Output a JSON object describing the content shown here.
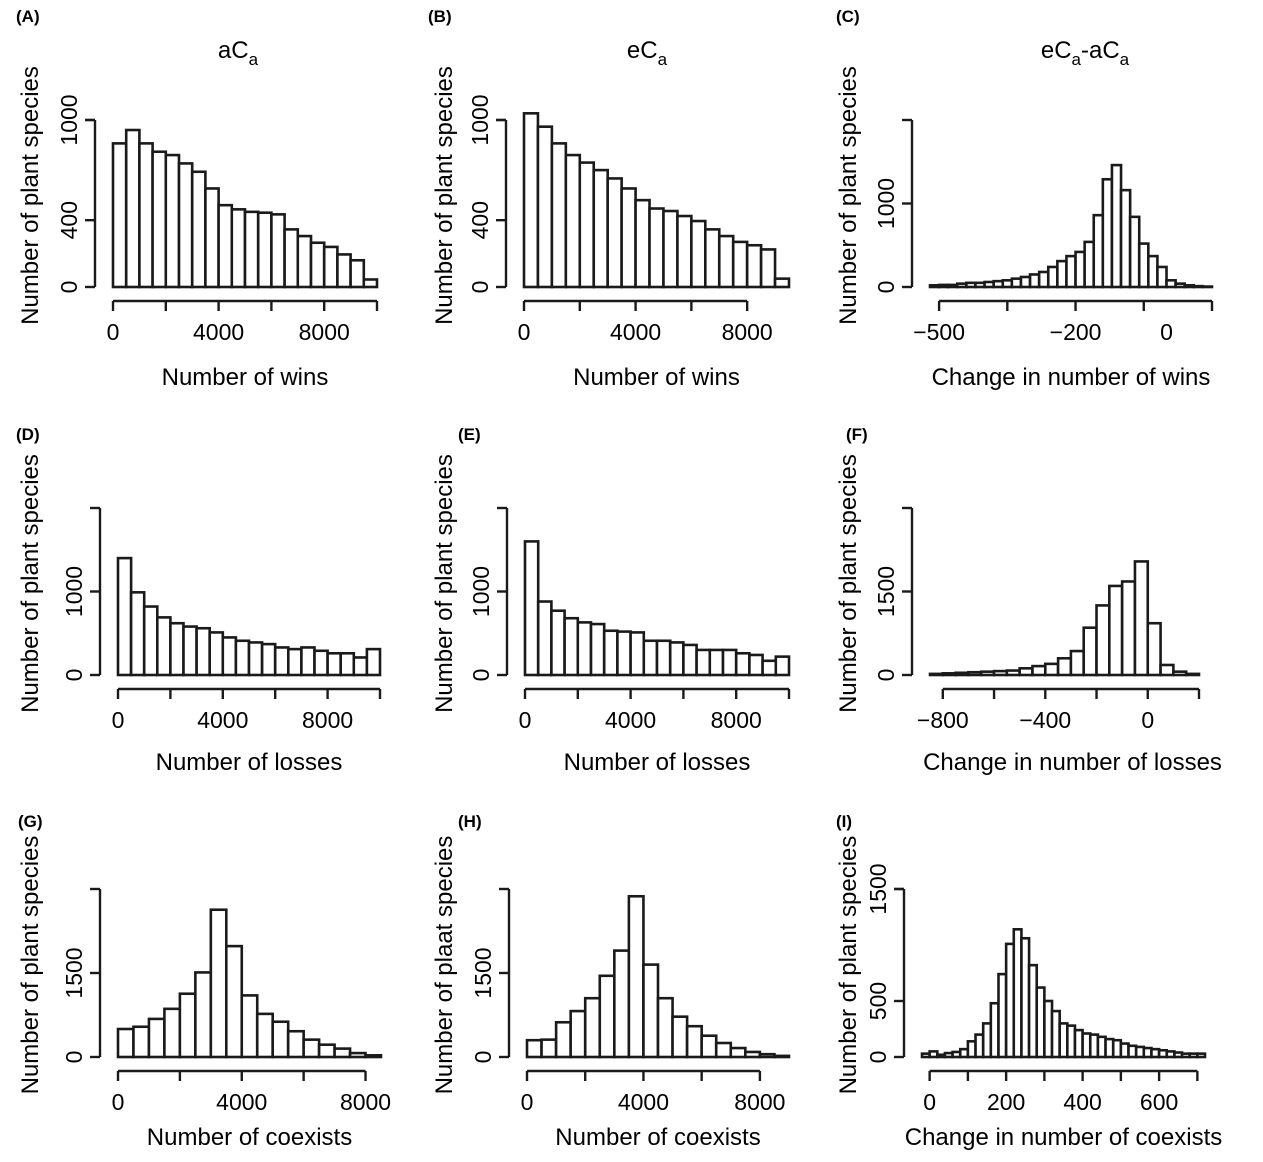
{
  "chart_data": [
    {
      "type": "bar",
      "panel": "(A)",
      "title": {
        "base": "aC",
        "sub": "a"
      },
      "xlabel": "Number of wins",
      "ylabel": "Number of plant species",
      "x_ticks": [
        "0",
        "4000",
        "8000"
      ],
      "y_ticks": [
        "0",
        "400",
        "1000"
      ],
      "xlim": [
        0,
        10000
      ],
      "ylim": [
        0,
        1000
      ],
      "bin_start": 0,
      "bin_width": 500,
      "values": [
        860,
        940,
        860,
        810,
        790,
        740,
        690,
        590,
        490,
        465,
        450,
        445,
        435,
        345,
        305,
        265,
        240,
        195,
        160,
        45
      ]
    },
    {
      "type": "bar",
      "panel": "(B)",
      "title": {
        "base": "eC",
        "sub": "a"
      },
      "xlabel": "Number of wins",
      "ylabel": "Number of plant species",
      "x_ticks": [
        "0",
        "4000",
        "8000"
      ],
      "y_ticks": [
        "0",
        "400",
        "1000"
      ],
      "xlim": [
        0,
        9500
      ],
      "ylim": [
        0,
        1000
      ],
      "bin_start": 0,
      "bin_width": 500,
      "values": [
        1040,
        960,
        860,
        790,
        745,
        700,
        650,
        590,
        520,
        470,
        455,
        425,
        395,
        345,
        305,
        270,
        250,
        225,
        50
      ]
    },
    {
      "type": "bar",
      "panel": "(C)",
      "title": {
        "base": "eC",
        "sub": "a",
        "suffix": "-aC",
        "suffix_sub": "a"
      },
      "xlabel": "Change in number of wins",
      "ylabel": "Number of plant species",
      "x_ticks": [
        "−500",
        "−200",
        "0"
      ],
      "y_ticks": [
        "0",
        "1000"
      ],
      "xlim": [
        -520,
        100
      ],
      "ylim": [
        0,
        2000
      ],
      "bin_start": -520,
      "bin_width": 20,
      "values": [
        20,
        25,
        25,
        40,
        50,
        50,
        60,
        70,
        80,
        100,
        120,
        150,
        180,
        240,
        310,
        370,
        420,
        540,
        860,
        1290,
        1460,
        1160,
        840,
        520,
        370,
        240,
        80,
        40,
        20,
        10,
        5
      ]
    },
    {
      "type": "bar",
      "panel": "(D)",
      "title": null,
      "xlabel": "Number of losses",
      "ylabel": "Number of plant species",
      "x_ticks": [
        "0",
        "4000",
        "8000"
      ],
      "y_ticks": [
        "0",
        "1000"
      ],
      "xlim": [
        0,
        10000
      ],
      "ylim": [
        0,
        2000
      ],
      "bin_start": 0,
      "bin_width": 500,
      "values": [
        1400,
        990,
        820,
        690,
        620,
        580,
        560,
        510,
        450,
        410,
        390,
        370,
        330,
        310,
        330,
        290,
        260,
        260,
        210,
        310
      ]
    },
    {
      "type": "bar",
      "panel": "(E)",
      "title": null,
      "xlabel": "Number of losses",
      "ylabel": "Number of plant species",
      "x_ticks": [
        "0",
        "4000",
        "8000"
      ],
      "y_ticks": [
        "0",
        "1000"
      ],
      "xlim": [
        0,
        10000
      ],
      "ylim": [
        0,
        2000
      ],
      "bin_start": 0,
      "bin_width": 500,
      "values": [
        1600,
        880,
        770,
        680,
        630,
        610,
        530,
        520,
        510,
        410,
        410,
        390,
        360,
        300,
        300,
        300,
        260,
        240,
        170,
        220
      ]
    },
    {
      "type": "bar",
      "panel": "(F)",
      "title": null,
      "xlabel": "Change in number of losses",
      "ylabel": "Number of plant species",
      "x_ticks": [
        "−800",
        "−400",
        "0"
      ],
      "y_ticks": [
        "0",
        "1500"
      ],
      "xlim": [
        -850,
        200
      ],
      "ylim": [
        0,
        3000
      ],
      "bin_start": -850,
      "bin_width": 50,
      "values": [
        20,
        30,
        40,
        50,
        60,
        70,
        80,
        120,
        160,
        200,
        300,
        430,
        850,
        1250,
        1600,
        1680,
        2040,
        930,
        180,
        60,
        20
      ]
    },
    {
      "type": "bar",
      "panel": "(G)",
      "title": null,
      "xlabel": "Number of coexists",
      "ylabel": "Number of plant species",
      "x_ticks": [
        "0",
        "4000",
        "8000"
      ],
      "y_ticks": [
        "0",
        "1500"
      ],
      "xlim": [
        0,
        8500
      ],
      "ylim": [
        0,
        3000
      ],
      "bin_start": 0,
      "bin_width": 500,
      "values": [
        500,
        540,
        680,
        860,
        1130,
        1510,
        2630,
        1980,
        1100,
        770,
        630,
        460,
        310,
        220,
        150,
        70,
        30
      ]
    },
    {
      "type": "bar",
      "panel": "(H)",
      "title": null,
      "xlabel": "Number of coexists",
      "ylabel": "Number of plaat species",
      "x_ticks": [
        "0",
        "4000",
        "8000"
      ],
      "y_ticks": [
        "0",
        "1500"
      ],
      "xlim": [
        0,
        9000
      ],
      "ylim": [
        0,
        3000
      ],
      "bin_start": 0,
      "bin_width": 500,
      "values": [
        300,
        310,
        620,
        820,
        1050,
        1450,
        1900,
        2870,
        1650,
        1050,
        720,
        550,
        380,
        250,
        160,
        90,
        50,
        20
      ]
    },
    {
      "type": "bar",
      "panel": "(I)",
      "title": null,
      "xlabel": "Change in number of coexists",
      "ylabel": "Number of plant species",
      "x_ticks": [
        "0",
        "200",
        "400",
        "600"
      ],
      "y_ticks": [
        "0",
        "500",
        "1500"
      ],
      "xlim": [
        -20,
        720
      ],
      "ylim": [
        0,
        1500
      ],
      "bin_start": -20,
      "bin_width": 20,
      "values": [
        30,
        50,
        20,
        35,
        45,
        70,
        140,
        200,
        300,
        480,
        740,
        1010,
        1140,
        1060,
        820,
        620,
        500,
        410,
        300,
        280,
        240,
        210,
        200,
        180,
        160,
        150,
        120,
        100,
        90,
        80,
        70,
        60,
        50,
        40,
        30,
        30,
        30
      ]
    }
  ]
}
